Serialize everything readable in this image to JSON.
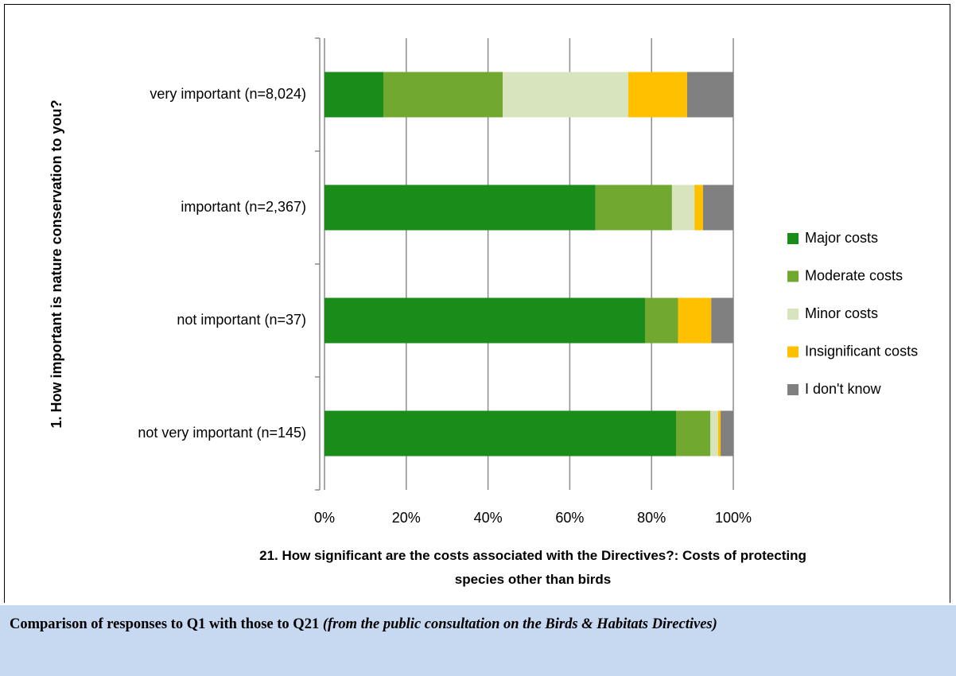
{
  "chart_data": {
    "type": "stacked-barh",
    "y_axis_title": "1. How important is nature conservation to you?",
    "x_axis_title": "21. How significant are the costs associated with the Directives?: Costs of protecting species other than birds",
    "categories": [
      "very important (n=8,024)",
      "important (n=2,367)",
      "not important (n=37)",
      "not very important (n=145)"
    ],
    "series": [
      {
        "name": "Major costs",
        "color": "#1a8c1a",
        "values": [
          14.4,
          66.3,
          78.4,
          86.0
        ]
      },
      {
        "name": "Moderate costs",
        "color": "#70a830",
        "values": [
          29.2,
          18.7,
          8.1,
          8.4
        ]
      },
      {
        "name": "Minor costs",
        "color": "#d7e4bd",
        "values": [
          30.7,
          5.5,
          0,
          1.9
        ]
      },
      {
        "name": "Insignificant costs",
        "color": "#ffc000",
        "values": [
          14.4,
          2.1,
          8.1,
          0.6
        ]
      },
      {
        "name": "I don't know",
        "color": "#808080",
        "values": [
          11.3,
          7.4,
          5.4,
          3.1
        ]
      }
    ],
    "xlim": [
      0,
      100
    ],
    "xticks": [
      {
        "value": 0,
        "label": "0%"
      },
      {
        "value": 20,
        "label": "20%"
      },
      {
        "value": 40,
        "label": "40%"
      },
      {
        "value": 60,
        "label": "60%"
      },
      {
        "value": 80,
        "label": "80%"
      },
      {
        "value": 100,
        "label": "100%"
      }
    ],
    "grid": true,
    "legend": "right"
  },
  "caption": {
    "text": "Comparison of responses to Q1 with those to Q21 ",
    "italic": "(from the public consultation on the Birds & Habitats Directives)"
  }
}
